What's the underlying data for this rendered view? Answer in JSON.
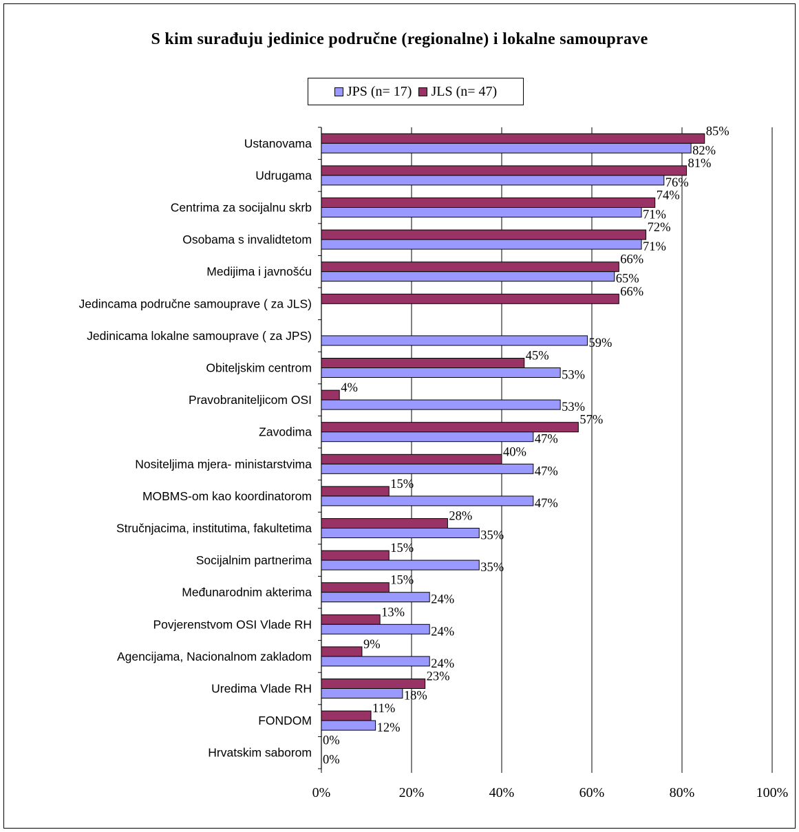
{
  "chart_data": {
    "type": "bar",
    "orientation": "horizontal",
    "title": "S kim surađuju jedinice područne (regionalne) i lokalne samouprave",
    "categories": [
      "Ustanovama",
      "Udrugama",
      "Centrima za socijalnu skrb",
      "Osobama s invalidtetom",
      "Medijima i javnošću",
      "Jedincama područne samouprave ( za JLS)",
      "Jedinicama lokalne samouprave  ( za JPS)",
      "Obiteljskim centrom",
      "Pravobraniteljicom OSI",
      "Zavodima",
      "Nositeljima mjera- ministarstvima",
      "MOBMS-om kao koordinatorom",
      "Stručnjacima, institutima, fakultetima",
      "Socijalnim partnerima",
      "Međunarodnim akterima",
      "Povjerenstvom OSI Vlade RH",
      "Agencijama, Nacionalnom zakladom",
      "Uredima Vlade RH",
      "FONDOM",
      "Hrvatskim saborom"
    ],
    "series": [
      {
        "name": "JLS (n= 47)",
        "color": "#993366",
        "values": [
          85,
          81,
          74,
          72,
          66,
          66,
          null,
          45,
          4,
          57,
          40,
          15,
          28,
          15,
          15,
          13,
          9,
          23,
          11,
          0
        ],
        "labels": [
          "85%",
          "81%",
          "74%",
          "72%",
          "66%",
          "66%",
          "",
          "45%",
          "4%",
          "57%",
          "40%",
          "15%",
          "28%",
          "15%",
          "15%",
          "13%",
          "9%",
          "23%",
          "11%",
          "0%"
        ]
      },
      {
        "name": "JPS (n= 17)",
        "color": "#9999FF",
        "values": [
          82,
          76,
          71,
          71,
          65,
          null,
          59,
          53,
          53,
          47,
          47,
          47,
          35,
          35,
          24,
          24,
          24,
          18,
          12,
          0
        ],
        "labels": [
          "82%",
          "76%",
          "71%",
          "71%",
          "65%",
          "",
          "59%",
          "53%",
          "53%",
          "47%",
          "47%",
          "47%",
          "35%",
          "35%",
          "24%",
          "24%",
          "24%",
          "18%",
          "12%",
          "0%"
        ]
      }
    ],
    "legend_order": [
      "JPS (n= 17)",
      "JLS (n= 47)"
    ],
    "legend_position": "top",
    "xlim": [
      0,
      100
    ],
    "xticks": [
      "0%",
      "20%",
      "40%",
      "60%",
      "80%",
      "100%"
    ],
    "grid": "vertical"
  }
}
